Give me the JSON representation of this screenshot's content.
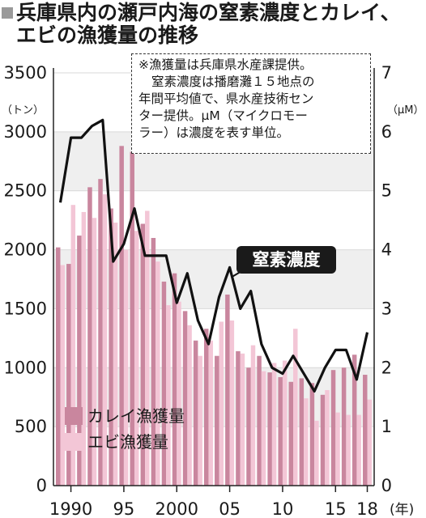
{
  "header": {
    "title_line1": "兵庫県内の瀬戸内海の窒素濃度とカレイ、",
    "title_line2": "エビの漁獲量の推移"
  },
  "note": [
    "※漁獲量は兵庫県水産課提供。",
    "窒素濃度は播磨灘１５地点の",
    "年間平均値で、県水産技術セン",
    "ター提供。μM（マイクロモー",
    "ラー）は濃度を表す単位。"
  ],
  "callout_label": "窒素濃度",
  "legend": {
    "flounder": "カレイ漁獲量",
    "shrimp": "エビ漁獲量"
  },
  "axes": {
    "left_unit": "（トン）",
    "right_unit": "（μM）",
    "year_unit": "(年)",
    "left_ticks": [
      "0",
      "500",
      "1000",
      "1500",
      "2000",
      "2500",
      "3000",
      "3500"
    ],
    "right_ticks": [
      "0",
      "1",
      "2",
      "3",
      "4",
      "5",
      "6",
      "7"
    ],
    "x_ticks": [
      {
        "year": 1990,
        "label": "1990"
      },
      {
        "year": 1995,
        "label": "95"
      },
      {
        "year": 2000,
        "label": "2000"
      },
      {
        "year": 2005,
        "label": "05"
      },
      {
        "year": 2010,
        "label": "10"
      },
      {
        "year": 2015,
        "label": "15"
      },
      {
        "year": 2018,
        "label": "18"
      }
    ]
  },
  "colors": {
    "flounder": "#c9869e",
    "shrimp": "#f3c6d6",
    "line": "#111111",
    "grid": "#d9d9d9",
    "band": "#efefef"
  },
  "chart_data": {
    "type": "bar",
    "x": [
      1989,
      1990,
      1991,
      1992,
      1993,
      1994,
      1995,
      1996,
      1997,
      1998,
      1999,
      2000,
      2001,
      2002,
      2003,
      2004,
      2005,
      2006,
      2007,
      2008,
      2009,
      2010,
      2011,
      2012,
      2013,
      2014,
      2015,
      2016,
      2017,
      2018
    ],
    "y_left_unit": "（トン）",
    "y_right_unit": "（μM）",
    "ylim_left": [
      0,
      3500
    ],
    "ylim_right": [
      0,
      7
    ],
    "series": [
      {
        "name": "カレイ漁獲量",
        "type": "bar",
        "axis": "left",
        "values": [
          2020,
          1880,
          2120,
          2530,
          2600,
          2350,
          2880,
          2830,
          2220,
          2100,
          1730,
          1800,
          1480,
          1230,
          1330,
          1100,
          1620,
          1140,
          1000,
          1100,
          960,
          920,
          880,
          910,
          870,
          770,
          980,
          1000,
          1110,
          940
        ]
      },
      {
        "name": "エビ漁獲量",
        "type": "bar",
        "axis": "left",
        "values": [
          1870,
          2380,
          2320,
          2270,
          2470,
          2230,
          2000,
          2160,
          2330,
          1900,
          1530,
          1560,
          1360,
          1100,
          1230,
          1390,
          1400,
          1120,
          1190,
          970,
          1040,
          1060,
          1330,
          740,
          550,
          810,
          620,
          600,
          600,
          730
        ]
      },
      {
        "name": "窒素濃度",
        "type": "line",
        "axis": "right",
        "values": [
          4.8,
          5.9,
          5.9,
          6.1,
          6.2,
          3.8,
          4.1,
          4.7,
          3.9,
          3.9,
          3.9,
          3.1,
          3.6,
          2.8,
          2.4,
          3.2,
          3.7,
          3.0,
          3.3,
          2.4,
          2.0,
          1.9,
          2.2,
          1.9,
          1.6,
          2.0,
          2.3,
          2.3,
          1.8,
          2.6
        ]
      }
    ]
  }
}
